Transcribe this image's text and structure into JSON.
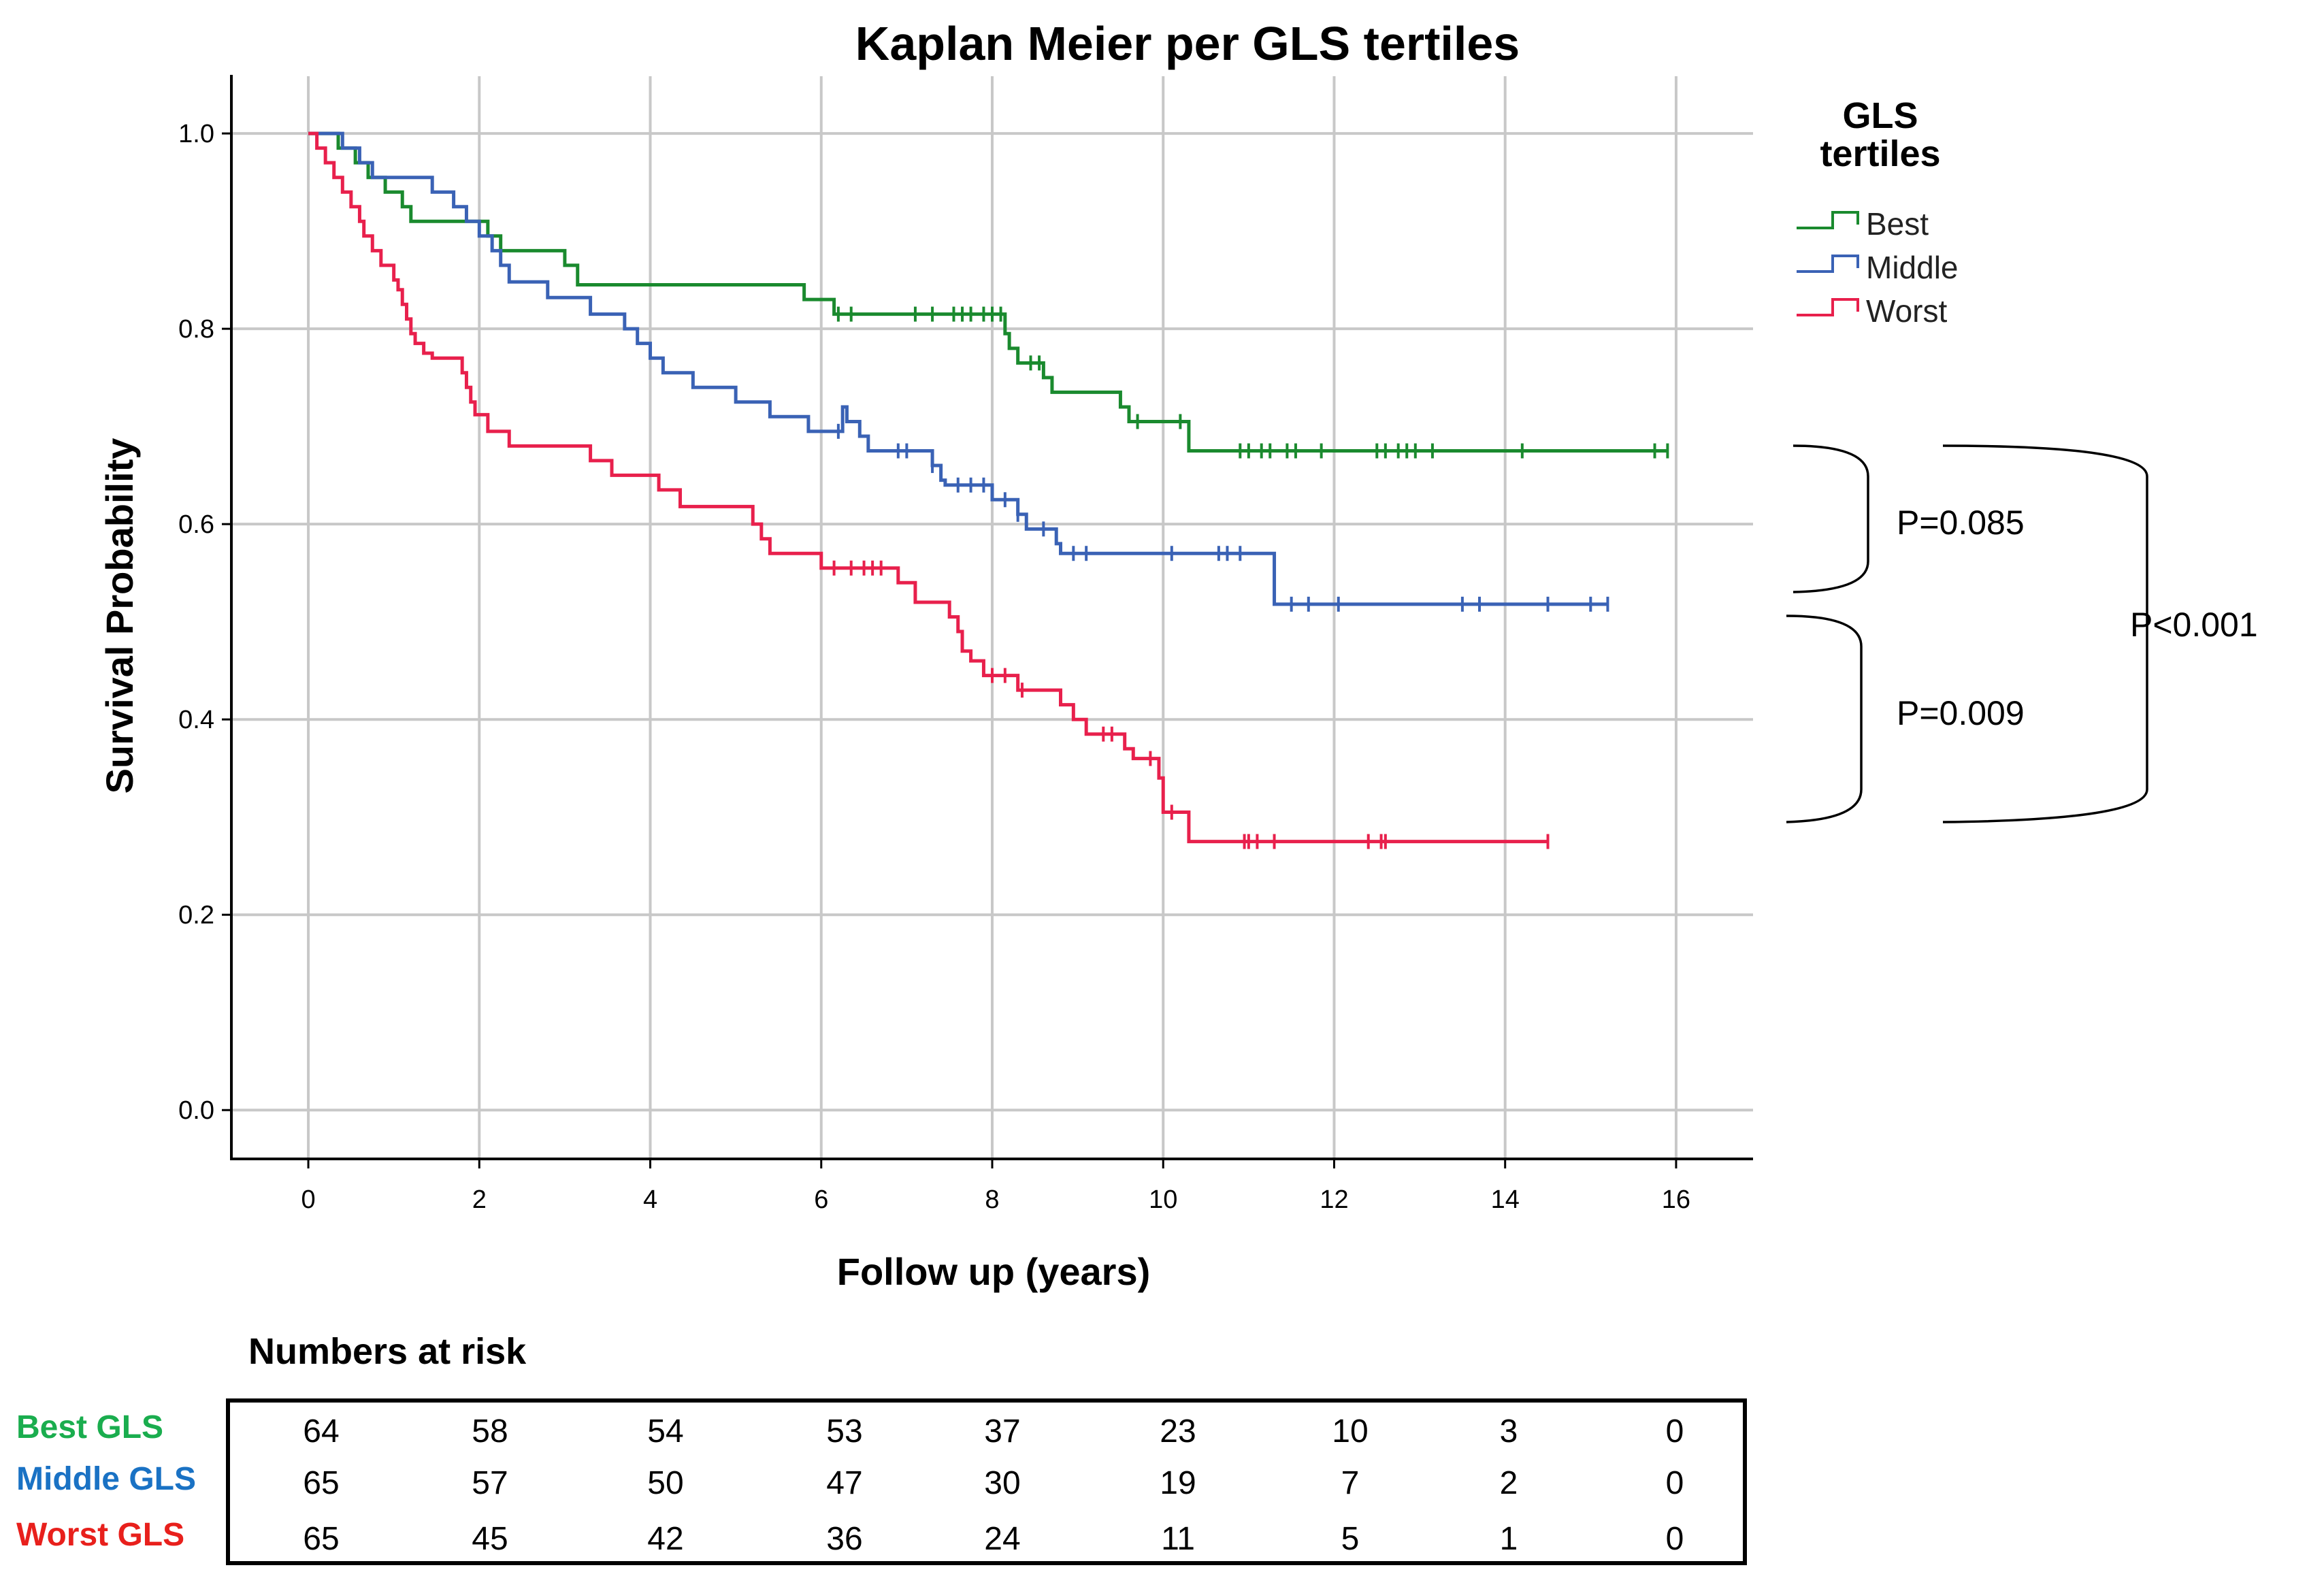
{
  "chart_data": {
    "type": "line",
    "subtype": "kaplan-meier",
    "title": "Kaplan Meier per GLS tertiles",
    "xlabel": "Follow up (years)",
    "ylabel": "Survival Probability",
    "xlim": [
      -0.9,
      16.9
    ],
    "ylim": [
      -0.05,
      1.06
    ],
    "xticks": [
      0,
      2,
      4,
      6,
      8,
      10,
      12,
      14,
      16
    ],
    "yticks": [
      0.0,
      0.2,
      0.4,
      0.6,
      0.8,
      1.0
    ],
    "xtick_labels": [
      "0",
      "2",
      "4",
      "6",
      "8",
      "10",
      "12",
      "14",
      "16"
    ],
    "ytick_labels": [
      "0.0",
      "0.2",
      "0.4",
      "0.6",
      "0.8",
      "1.0"
    ],
    "grid": true,
    "legend": {
      "title": "GLS tertiles",
      "position": "top-right outside",
      "entries": [
        "Best",
        "Middle",
        "Worst"
      ]
    },
    "series": [
      {
        "name": "Best",
        "color": "#1a8a2e",
        "steps": [
          [
            0,
            1.0
          ],
          [
            0.35,
            0.985
          ],
          [
            0.55,
            0.97
          ],
          [
            0.7,
            0.955
          ],
          [
            0.9,
            0.94
          ],
          [
            1.1,
            0.925
          ],
          [
            1.2,
            0.91
          ],
          [
            2.1,
            0.895
          ],
          [
            2.25,
            0.88
          ],
          [
            3.0,
            0.865
          ],
          [
            3.15,
            0.845
          ],
          [
            5.8,
            0.83
          ],
          [
            6.15,
            0.815
          ],
          [
            8.15,
            0.795
          ],
          [
            8.2,
            0.78
          ],
          [
            8.3,
            0.765
          ],
          [
            8.6,
            0.75
          ],
          [
            8.7,
            0.735
          ],
          [
            9.5,
            0.72
          ],
          [
            9.6,
            0.705
          ],
          [
            10.3,
            0.675
          ]
        ],
        "end_x": 15.9,
        "censor_x": [
          6.2,
          6.35,
          7.1,
          7.3,
          7.55,
          7.65,
          7.75,
          7.9,
          8.0,
          8.1,
          8.45,
          8.55,
          9.7,
          10.2,
          10.9,
          11.0,
          11.15,
          11.25,
          11.45,
          11.55,
          11.85,
          12.5,
          12.6,
          12.75,
          12.85,
          12.95,
          13.15,
          14.2,
          15.75,
          15.9
        ]
      },
      {
        "name": "Middle",
        "color": "#3a62b5",
        "steps": [
          [
            0,
            1.0
          ],
          [
            0.4,
            0.985
          ],
          [
            0.6,
            0.97
          ],
          [
            0.75,
            0.955
          ],
          [
            1.45,
            0.94
          ],
          [
            1.7,
            0.925
          ],
          [
            1.85,
            0.91
          ],
          [
            2.0,
            0.895
          ],
          [
            2.15,
            0.88
          ],
          [
            2.25,
            0.865
          ],
          [
            2.35,
            0.848
          ],
          [
            2.8,
            0.832
          ],
          [
            3.3,
            0.815
          ],
          [
            3.7,
            0.8
          ],
          [
            3.85,
            0.785
          ],
          [
            4.0,
            0.77
          ],
          [
            4.15,
            0.755
          ],
          [
            4.5,
            0.74
          ],
          [
            5.0,
            0.725
          ],
          [
            5.4,
            0.71
          ],
          [
            5.85,
            0.695
          ],
          [
            6.25,
            0.72
          ],
          [
            6.3,
            0.705
          ],
          [
            6.45,
            0.69
          ],
          [
            6.55,
            0.675
          ],
          [
            7.3,
            0.66
          ],
          [
            7.4,
            0.645
          ],
          [
            7.45,
            0.64
          ],
          [
            8.0,
            0.625
          ],
          [
            8.3,
            0.61
          ],
          [
            8.4,
            0.595
          ],
          [
            8.75,
            0.58
          ],
          [
            8.8,
            0.57
          ],
          [
            11.3,
            0.518
          ]
        ],
        "end_x": 15.2,
        "censor_x": [
          6.2,
          6.9,
          7.0,
          7.3,
          7.6,
          7.75,
          7.9,
          8.15,
          8.3,
          8.6,
          8.95,
          9.1,
          10.1,
          10.65,
          10.75,
          10.9,
          11.5,
          11.7,
          12.05,
          13.5,
          13.7,
          14.5,
          15.0,
          15.2
        ]
      },
      {
        "name": "Worst",
        "color": "#e8204c",
        "steps": [
          [
            0,
            1.0
          ],
          [
            0.1,
            0.985
          ],
          [
            0.2,
            0.97
          ],
          [
            0.3,
            0.955
          ],
          [
            0.4,
            0.94
          ],
          [
            0.5,
            0.925
          ],
          [
            0.6,
            0.91
          ],
          [
            0.65,
            0.895
          ],
          [
            0.75,
            0.88
          ],
          [
            0.85,
            0.865
          ],
          [
            1.0,
            0.85
          ],
          [
            1.05,
            0.84
          ],
          [
            1.1,
            0.825
          ],
          [
            1.15,
            0.81
          ],
          [
            1.2,
            0.795
          ],
          [
            1.25,
            0.785
          ],
          [
            1.35,
            0.775
          ],
          [
            1.45,
            0.77
          ],
          [
            1.8,
            0.755
          ],
          [
            1.85,
            0.74
          ],
          [
            1.9,
            0.725
          ],
          [
            1.95,
            0.712
          ],
          [
            2.1,
            0.695
          ],
          [
            2.35,
            0.68
          ],
          [
            3.3,
            0.665
          ],
          [
            3.55,
            0.65
          ],
          [
            4.1,
            0.635
          ],
          [
            4.35,
            0.618
          ],
          [
            5.2,
            0.6
          ],
          [
            5.3,
            0.585
          ],
          [
            5.4,
            0.57
          ],
          [
            6.0,
            0.555
          ],
          [
            6.9,
            0.54
          ],
          [
            7.1,
            0.52
          ],
          [
            7.5,
            0.505
          ],
          [
            7.6,
            0.49
          ],
          [
            7.65,
            0.47
          ],
          [
            7.75,
            0.46
          ],
          [
            7.9,
            0.445
          ],
          [
            8.3,
            0.43
          ],
          [
            8.8,
            0.415
          ],
          [
            8.95,
            0.4
          ],
          [
            9.1,
            0.385
          ],
          [
            9.55,
            0.37
          ],
          [
            9.65,
            0.36
          ],
          [
            9.95,
            0.34
          ],
          [
            10.0,
            0.305
          ],
          [
            10.3,
            0.275
          ]
        ],
        "end_x": 14.5,
        "censor_x": [
          6.15,
          6.35,
          6.5,
          6.6,
          6.7,
          8.0,
          8.15,
          8.35,
          9.3,
          9.4,
          9.85,
          10.1,
          10.95,
          11.0,
          11.1,
          11.3,
          12.4,
          12.55,
          12.6,
          14.5
        ]
      }
    ],
    "annotations": [
      {
        "text": "P=0.085",
        "compares": [
          "Best",
          "Middle"
        ]
      },
      {
        "text": "P=0.009",
        "compares": [
          "Middle",
          "Worst"
        ]
      },
      {
        "text": "P<0.001",
        "compares": [
          "Best",
          "Worst"
        ]
      }
    ]
  },
  "risk_table": {
    "title": "Numbers at risk",
    "rows": [
      {
        "label": "Best GLS",
        "color": "#1aad4e",
        "values": [
          64,
          58,
          54,
          53,
          37,
          23,
          10,
          3,
          0
        ]
      },
      {
        "label": "Middle GLS",
        "color": "#1a72c4",
        "values": [
          65,
          57,
          50,
          47,
          30,
          19,
          7,
          2,
          0
        ]
      },
      {
        "label": "Worst GLS",
        "color": "#e8201c",
        "values": [
          65,
          45,
          42,
          36,
          24,
          11,
          5,
          1,
          0
        ]
      }
    ]
  }
}
